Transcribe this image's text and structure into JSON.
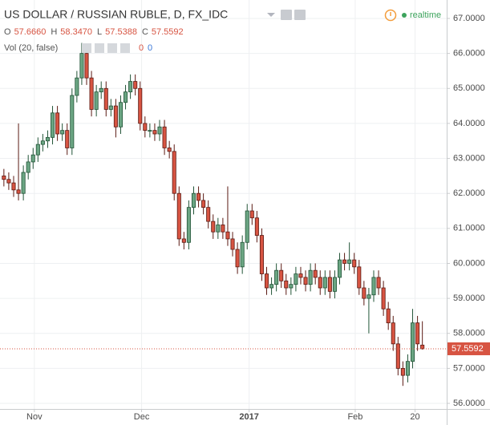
{
  "chart_data": {
    "type": "candlestick",
    "title": "US DOLLAR / RUSSIAN RUBLE, D, FX_IDC",
    "ohlc_legend": [
      {
        "key": "O",
        "value": "57.6660"
      },
      {
        "key": "H",
        "value": "58.3470"
      },
      {
        "key": "L",
        "value": "57.5388"
      },
      {
        "key": "C",
        "value": "57.5592"
      }
    ],
    "volume_legend": {
      "label": "Vol (20, false)",
      "values": [
        "0",
        "0"
      ]
    },
    "status": "realtime",
    "price_label": "57.5592",
    "up_color": "#6ba583",
    "down_color": "#d75442",
    "up_border": "#225437",
    "down_border": "#5b1a13",
    "grid": true,
    "x": [
      0,
      1,
      2,
      3,
      4,
      5,
      6,
      7,
      8,
      9,
      10,
      11,
      12,
      13,
      14,
      15,
      16,
      17,
      18,
      19,
      20,
      21,
      22,
      23,
      24,
      25,
      26,
      27,
      28,
      29,
      30,
      31,
      32,
      33,
      34,
      35,
      36,
      37,
      38,
      39,
      40,
      41,
      42,
      43,
      44,
      45,
      46,
      47,
      48,
      49,
      50,
      51,
      52,
      53,
      54,
      55,
      56,
      57,
      58,
      59,
      60,
      61,
      62,
      63,
      64,
      65,
      66,
      67,
      68,
      69,
      70,
      71,
      72,
      73,
      74,
      75,
      76,
      77,
      78,
      79,
      80,
      81,
      82,
      83,
      84,
      85,
      86
    ],
    "open": [
      62.5,
      62.4,
      62.3,
      62.1,
      62.0,
      62.6,
      62.9,
      63.1,
      63.4,
      63.5,
      63.6,
      64.3,
      63.7,
      63.8,
      63.3,
      64.8,
      65.3,
      66.0,
      65.3,
      64.4,
      64.9,
      65.0,
      64.4,
      64.5,
      63.9,
      64.6,
      64.9,
      65.2,
      65.0,
      64.0,
      63.8,
      63.8,
      63.7,
      63.9,
      63.3,
      63.2,
      62.0,
      60.7,
      60.6,
      61.6,
      62.0,
      61.8,
      61.6,
      61.2,
      60.9,
      61.1,
      60.9,
      60.7,
      60.4,
      59.9,
      60.6,
      61.5,
      61.3,
      60.8,
      59.7,
      59.3,
      59.4,
      59.8,
      59.5,
      59.3,
      59.4,
      59.7,
      59.6,
      59.4,
      59.8,
      59.6,
      59.3,
      59.6,
      59.2,
      59.6,
      60.1,
      60.0,
      60.1,
      59.9,
      59.3,
      59.0,
      59.1,
      59.6,
      59.3,
      58.7,
      58.3,
      57.7,
      57.0,
      56.8,
      57.2,
      58.3,
      57.666
    ],
    "high": [
      62.7,
      62.6,
      62.5,
      64.0,
      62.8,
      63.1,
      63.3,
      63.6,
      63.7,
      63.8,
      64.5,
      64.5,
      64.0,
      64.0,
      65.0,
      65.5,
      66.3,
      66.2,
      65.5,
      65.1,
      65.2,
      65.2,
      64.7,
      64.7,
      64.8,
      65.1,
      65.4,
      65.4,
      65.2,
      64.2,
      64.0,
      64.0,
      64.1,
      64.1,
      63.5,
      63.4,
      62.2,
      60.9,
      61.8,
      62.2,
      62.2,
      62.0,
      61.8,
      61.4,
      61.3,
      61.3,
      62.2,
      60.9,
      60.6,
      60.8,
      61.7,
      61.7,
      61.5,
      61.0,
      59.9,
      59.6,
      60.0,
      60.0,
      59.7,
      59.6,
      59.9,
      59.9,
      59.8,
      60.0,
      60.0,
      59.8,
      59.8,
      59.8,
      59.8,
      60.3,
      60.3,
      60.6,
      60.3,
      60.1,
      59.5,
      59.3,
      59.8,
      59.8,
      59.5,
      58.9,
      58.5,
      57.9,
      57.2,
      57.4,
      58.7,
      58.5,
      58.347
    ],
    "low": [
      62.2,
      62.1,
      61.9,
      61.8,
      61.8,
      62.4,
      62.7,
      62.9,
      63.2,
      63.3,
      63.4,
      63.5,
      63.5,
      63.1,
      63.1,
      64.6,
      65.1,
      65.1,
      64.2,
      64.2,
      64.7,
      64.2,
      64.2,
      63.6,
      63.7,
      64.4,
      64.7,
      64.8,
      63.8,
      63.6,
      63.6,
      63.5,
      63.5,
      63.1,
      63.0,
      61.8,
      60.5,
      60.4,
      60.4,
      61.4,
      61.6,
      61.4,
      61.0,
      60.7,
      60.7,
      60.7,
      60.5,
      60.2,
      59.7,
      59.7,
      60.4,
      61.1,
      60.6,
      59.5,
      59.1,
      59.1,
      59.2,
      59.3,
      59.1,
      59.1,
      59.2,
      59.4,
      59.2,
      59.2,
      59.4,
      59.1,
      59.1,
      59.0,
      59.0,
      59.4,
      59.8,
      59.8,
      59.7,
      59.1,
      58.8,
      58.0,
      58.9,
      59.1,
      58.5,
      58.1,
      57.5,
      56.8,
      56.5,
      56.6,
      57.0,
      57.5,
      57.5388
    ],
    "close": [
      62.4,
      62.3,
      62.1,
      62.0,
      62.6,
      62.9,
      63.1,
      63.4,
      63.5,
      63.6,
      64.3,
      63.7,
      63.8,
      63.3,
      64.8,
      65.3,
      66.0,
      65.3,
      64.4,
      64.9,
      65.0,
      64.4,
      64.5,
      63.9,
      64.6,
      64.9,
      65.2,
      65.0,
      64.0,
      63.8,
      63.8,
      63.7,
      63.9,
      63.3,
      63.2,
      62.0,
      60.7,
      60.6,
      61.6,
      62.0,
      61.8,
      61.6,
      61.2,
      60.9,
      61.1,
      60.9,
      60.7,
      60.4,
      59.9,
      60.6,
      61.5,
      61.3,
      60.8,
      59.7,
      59.3,
      59.4,
      59.8,
      59.5,
      59.3,
      59.4,
      59.7,
      59.6,
      59.4,
      59.8,
      59.6,
      59.3,
      59.6,
      59.2,
      59.6,
      60.1,
      60.0,
      60.1,
      59.9,
      59.3,
      59.0,
      59.1,
      59.6,
      59.3,
      58.7,
      58.3,
      57.7,
      57.0,
      56.8,
      57.2,
      58.3,
      57.7,
      57.5592
    ],
    "xlim": [
      -0.8,
      91
    ],
    "xticks": [
      {
        "value": 6.26,
        "label": "Nov"
      },
      {
        "value": 28.3,
        "label": "Dec"
      },
      {
        "value": 50.4,
        "label": "2017"
      },
      {
        "value": 72.2,
        "label": "Feb"
      },
      {
        "value": 84.5,
        "label": "20"
      }
    ],
    "ylim": [
      55.84,
      67.527
    ],
    "yticks": [
      {
        "value": 56,
        "label": "56.0000"
      },
      {
        "value": 57,
        "label": "57.0000"
      },
      {
        "value": 58,
        "label": "58.0000"
      },
      {
        "value": 59,
        "label": "59.0000"
      },
      {
        "value": 60,
        "label": "60.0000"
      },
      {
        "value": 61,
        "label": "61.0000"
      },
      {
        "value": 62,
        "label": "62.0000"
      },
      {
        "value": 63,
        "label": "63.0000"
      },
      {
        "value": 64,
        "label": "64.0000"
      },
      {
        "value": 65,
        "label": "65.0000"
      },
      {
        "value": 66,
        "label": "66.0000"
      },
      {
        "value": 67,
        "label": "67.0000"
      }
    ]
  }
}
